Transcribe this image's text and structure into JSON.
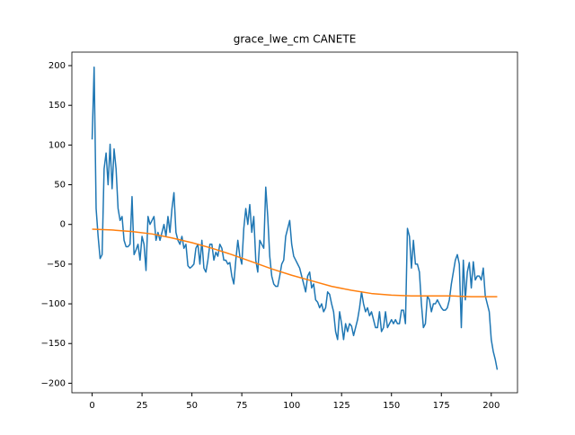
{
  "chart_data": {
    "type": "line",
    "title": "grace_lwe_cm CANETE",
    "xlim": [
      -10.15,
      213.15
    ],
    "ylim": [
      -212,
      217
    ],
    "xticks": [
      0,
      25,
      50,
      75,
      100,
      125,
      150,
      175,
      200
    ],
    "yticks": [
      {
        "value": -200,
        "label": "−200"
      },
      {
        "value": -150,
        "label": "−150"
      },
      {
        "value": -100,
        "label": "−100"
      },
      {
        "value": -50,
        "label": "−50"
      },
      0,
      50,
      100,
      150,
      200
    ],
    "series": [
      {
        "color": "#1f77b4",
        "x": [
          0,
          1,
          2,
          3,
          4,
          5,
          6,
          7,
          8,
          9,
          10,
          11,
          12,
          13,
          14,
          15,
          16,
          17,
          18,
          19,
          20,
          21,
          22,
          23,
          24,
          25,
          26,
          27,
          28,
          29,
          30,
          31,
          32,
          33,
          34,
          35,
          36,
          37,
          38,
          39,
          40,
          41,
          42,
          43,
          44,
          45,
          46,
          47,
          48,
          49,
          50,
          51,
          52,
          53,
          54,
          55,
          56,
          57,
          58,
          59,
          60,
          61,
          62,
          63,
          64,
          65,
          66,
          67,
          68,
          69,
          70,
          71,
          72,
          73,
          74,
          75,
          76,
          77,
          78,
          79,
          80,
          81,
          82,
          83,
          84,
          85,
          86,
          87,
          88,
          89,
          90,
          91,
          92,
          93,
          94,
          95,
          96,
          97,
          98,
          99,
          100,
          101,
          102,
          103,
          104,
          105,
          106,
          107,
          108,
          109,
          110,
          111,
          112,
          113,
          114,
          115,
          116,
          117,
          118,
          119,
          120,
          121,
          122,
          123,
          124,
          125,
          126,
          127,
          128,
          129,
          130,
          131,
          132,
          133,
          134,
          135,
          136,
          137,
          138,
          139,
          140,
          141,
          142,
          143,
          144,
          145,
          146,
          147,
          148,
          149,
          150,
          151,
          152,
          153,
          154,
          155,
          156,
          157,
          158,
          159,
          160,
          161,
          162,
          163,
          164,
          165,
          166,
          167,
          168,
          169,
          170,
          171,
          172,
          173,
          174,
          175,
          176,
          177,
          178,
          179,
          180,
          181,
          182,
          183,
          184,
          185,
          186,
          187,
          188,
          189,
          190,
          191,
          192,
          193,
          194,
          195,
          196,
          197,
          198,
          199,
          200,
          201,
          202,
          203
        ],
        "values": [
          107,
          198,
          20,
          -15,
          -43,
          -38,
          70,
          90,
          50,
          101,
          45,
          95,
          70,
          20,
          5,
          10,
          -20,
          -28,
          -28,
          -25,
          35,
          -38,
          -32,
          -25,
          -45,
          -15,
          -25,
          -58,
          10,
          0,
          5,
          10,
          -20,
          -10,
          -20,
          -10,
          0,
          -15,
          10,
          -10,
          20,
          40,
          -10,
          -20,
          -25,
          -15,
          -30,
          -25,
          -52,
          -55,
          -53,
          -50,
          -30,
          -25,
          -50,
          -20,
          -55,
          -60,
          -45,
          -25,
          -25,
          -45,
          -35,
          -40,
          -25,
          -30,
          -45,
          -45,
          -50,
          -48,
          -65,
          -75,
          -45,
          -20,
          -40,
          -50,
          -5,
          20,
          0,
          25,
          -10,
          10,
          -45,
          -60,
          -20,
          -25,
          -30,
          47,
          10,
          -40,
          -65,
          -75,
          -78,
          -78,
          -65,
          -50,
          -45,
          -15,
          -5,
          5,
          -25,
          -40,
          -45,
          -50,
          -55,
          -65,
          -75,
          -85,
          -65,
          -60,
          -80,
          -75,
          -95,
          -98,
          -105,
          -100,
          -110,
          -105,
          -85,
          -88,
          -100,
          -110,
          -135,
          -145,
          -110,
          -125,
          -145,
          -125,
          -135,
          -125,
          -128,
          -140,
          -130,
          -120,
          -105,
          -85,
          -100,
          -110,
          -105,
          -115,
          -110,
          -120,
          -130,
          -130,
          -110,
          -135,
          -130,
          -110,
          -130,
          -125,
          -120,
          -125,
          -120,
          -125,
          -125,
          -108,
          -108,
          -125,
          -5,
          -15,
          -55,
          -20,
          -50,
          -50,
          -60,
          -100,
          -130,
          -125,
          -90,
          -95,
          -110,
          -100,
          -100,
          -95,
          -100,
          -105,
          -108,
          -108,
          -105,
          -95,
          -75,
          -60,
          -45,
          -38,
          -50,
          -130,
          -45,
          -95,
          -60,
          -48,
          -80,
          -47,
          -70,
          -65,
          -65,
          -70,
          -55,
          -90,
          -100,
          -110,
          -145,
          -160,
          -170,
          -183
        ]
      },
      {
        "color": "#ff7f0e",
        "x": [
          0,
          10,
          20,
          30,
          40,
          50,
          60,
          70,
          80,
          90,
          100,
          110,
          120,
          130,
          140,
          150,
          160,
          170,
          180,
          190,
          200,
          203
        ],
        "values": [
          -6,
          -7,
          -9,
          -12,
          -17,
          -23,
          -30,
          -38,
          -47,
          -56,
          -64,
          -71,
          -78,
          -83,
          -87,
          -89,
          -90,
          -90,
          -90,
          -91,
          -91,
          -91
        ]
      }
    ]
  }
}
